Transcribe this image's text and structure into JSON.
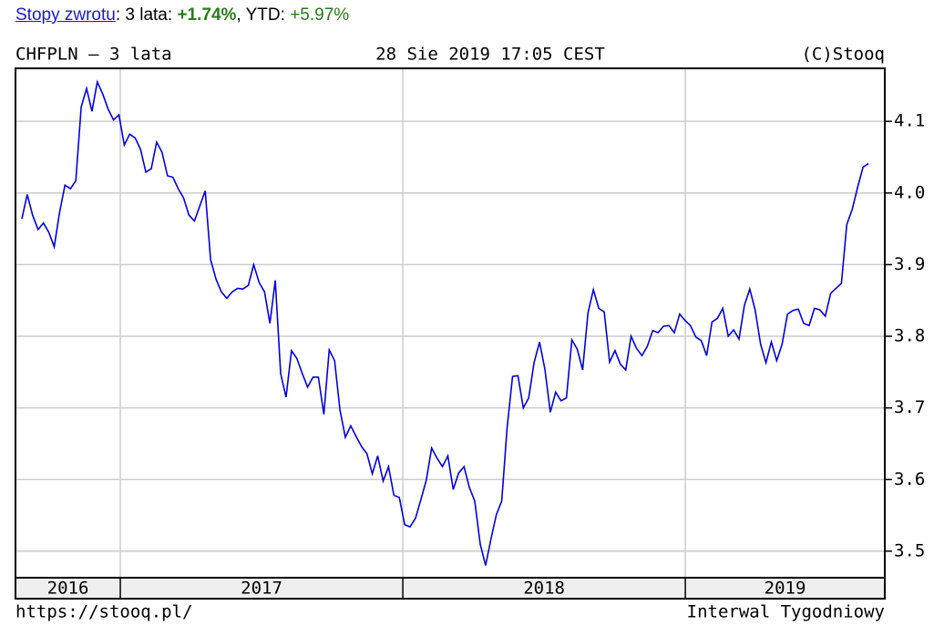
{
  "header": {
    "link": "Stopy zwrotu",
    "period_label": ": 3 lata: ",
    "period_return": "+1.74%",
    "ytd_label": ", YTD: ",
    "ytd_return": "+5.97%"
  },
  "chart_data": {
    "type": "line",
    "title": "CHFPLN – 3 lata",
    "subtitle": "28 Sie 2019 17:05 CEST",
    "credit": "(C)Stooq",
    "footer_left": "https://stooq.pl/",
    "footer_right": "Interwal Tygodniowy",
    "color": "#0000dd",
    "grid": true,
    "xlim": [
      2016.629,
      2019.706
    ],
    "xticks": [
      2017,
      2018,
      2019
    ],
    "years": [
      2016,
      2017,
      2018,
      2019
    ],
    "ylim": [
      3.463,
      4.174
    ],
    "yticks": [
      3.5,
      3.6,
      3.7,
      3.8,
      3.9,
      {
        "value": 4,
        "label": "4.0"
      },
      4.1
    ],
    "values": [
      3.964,
      3.998,
      3.969,
      3.949,
      3.958,
      3.945,
      3.925,
      3.973,
      4.011,
      4.006,
      4.017,
      4.12,
      4.146,
      4.114,
      4.155,
      4.138,
      4.117,
      4.102,
      4.109,
      4.067,
      4.082,
      4.077,
      4.061,
      4.029,
      4.034,
      4.071,
      4.057,
      4.024,
      4.022,
      4.006,
      3.993,
      3.969,
      3.961,
      3.982,
      4.003,
      3.907,
      3.88,
      3.862,
      3.853,
      3.862,
      3.867,
      3.866,
      3.871,
      3.9,
      3.875,
      3.862,
      3.818,
      3.878,
      3.748,
      3.715,
      3.78,
      3.769,
      3.748,
      3.729,
      3.743,
      3.743,
      3.691,
      3.781,
      3.766,
      3.697,
      3.659,
      3.675,
      3.66,
      3.646,
      3.636,
      3.608,
      3.633,
      3.598,
      3.618,
      3.578,
      3.575,
      3.537,
      3.534,
      3.546,
      3.572,
      3.599,
      3.644,
      3.63,
      3.618,
      3.633,
      3.586,
      3.609,
      3.618,
      3.589,
      3.57,
      3.51,
      3.48,
      3.517,
      3.551,
      3.57,
      3.672,
      3.744,
      3.745,
      3.7,
      3.714,
      3.763,
      3.792,
      3.754,
      3.694,
      3.722,
      3.71,
      3.714,
      3.795,
      3.782,
      3.753,
      3.833,
      3.865,
      3.839,
      3.834,
      3.764,
      3.78,
      3.761,
      3.753,
      3.8,
      3.783,
      3.773,
      3.786,
      3.808,
      3.805,
      3.814,
      3.815,
      3.805,
      3.831,
      3.822,
      3.815,
      3.799,
      3.794,
      3.773,
      3.82,
      3.825,
      3.839,
      3.8,
      3.809,
      3.796,
      3.843,
      3.866,
      3.837,
      3.789,
      3.763,
      3.792,
      3.766,
      3.789,
      3.831,
      3.836,
      3.838,
      3.818,
      3.815,
      3.839,
      3.837,
      3.828,
      3.86,
      3.867,
      3.874,
      3.956,
      3.977,
      4.008,
      4.036,
      4.041
    ]
  }
}
